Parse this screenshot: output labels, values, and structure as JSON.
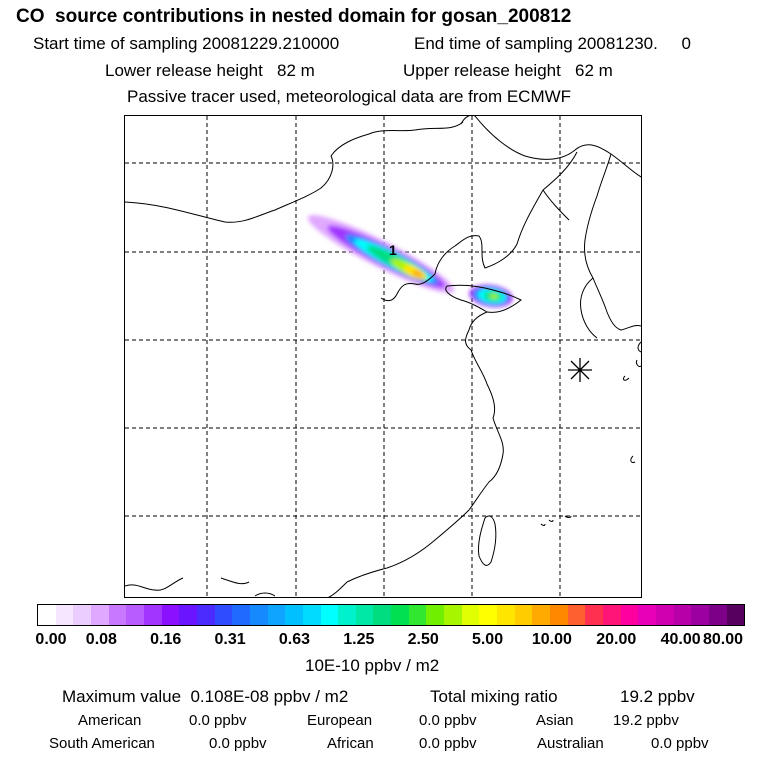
{
  "header": {
    "title": "CO  source contributions in nested domain for gosan_200812",
    "start_label": "Start time of sampling 20081229.210000",
    "end_label": "End time of sampling 20081230.     0",
    "lower_label": "Lower release height   82 m",
    "upper_label": "Upper release height   62 m",
    "tracer_line": "Passive tracer used, meteorological data are from ECMWF"
  },
  "map": {
    "receptor_marker": "1",
    "station_icon": "asterisk-station-icon"
  },
  "chart_data": {
    "type": "heatmap",
    "title": "CO  source contributions in nested domain for gosan_200812",
    "colorbar": {
      "unit": "10E-10 ppbv / m2",
      "tick_labels": [
        "0.00",
        "0.08",
        "0.16",
        "0.31",
        "0.63",
        "1.25",
        "2.50",
        "5.00",
        "10.00",
        "20.00",
        "40.00",
        "80.00"
      ],
      "colors": [
        "#ffffff",
        "#f6e6ff",
        "#eccdff",
        "#e0a8ff",
        "#c878ff",
        "#b85cff",
        "#a235ff",
        "#8a10ff",
        "#6a14ff",
        "#4c2bff",
        "#2f4cff",
        "#1f6bff",
        "#158aff",
        "#0ea4ff",
        "#00c0ff",
        "#00dcff",
        "#00ffff",
        "#00f2cc",
        "#00e8a6",
        "#00dd80",
        "#00e050",
        "#30e830",
        "#70f000",
        "#a8f500",
        "#e0ff00",
        "#ffff00",
        "#ffe600",
        "#ffcc00",
        "#ffaa00",
        "#ff8800",
        "#ff6030",
        "#ff3050",
        "#ff1478",
        "#ff00a0",
        "#e800b8",
        "#d000b0",
        "#b800a8",
        "#9c00a0",
        "#7c0088",
        "#580060"
      ]
    },
    "grid": true
  },
  "footer": {
    "max_label": "Maximum value  0.108E-08 ppbv / m2",
    "total_label": "Total mixing ratio",
    "total_value": "19.2 ppbv",
    "regions": [
      {
        "name": "American",
        "value": "0.0 ppbv"
      },
      {
        "name": "European",
        "value": "0.0 ppbv"
      },
      {
        "name": "Asian",
        "value": "19.2 ppbv"
      },
      {
        "name": "South American",
        "value": "0.0 ppbv"
      },
      {
        "name": "African",
        "value": "0.0 ppbv"
      },
      {
        "name": "Australian",
        "value": "0.0 ppbv"
      }
    ]
  }
}
